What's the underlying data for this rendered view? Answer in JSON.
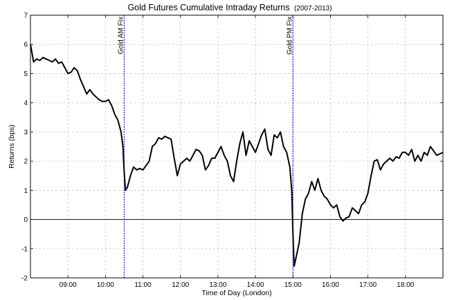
{
  "chart_data": {
    "type": "line",
    "title": "Gold Futures Cumulative Intraday Returns",
    "title_suffix": "(2007-2013)",
    "xlabel": "Time of Day (London)",
    "ylabel": "Returns (bps)",
    "xlim": [
      "08:00",
      "19:00"
    ],
    "ylim": [
      -2,
      7
    ],
    "x_ticks": [
      "09:00",
      "10:00",
      "11:00",
      "12:00",
      "13:00",
      "14:00",
      "15:00",
      "16:00",
      "17:00",
      "18:00"
    ],
    "y_ticks": [
      -2,
      -1,
      0,
      1,
      2,
      3,
      4,
      5,
      6,
      7
    ],
    "grid": true,
    "zero_line": true,
    "line_color": "#000000",
    "marker_color": "#1f1fbf",
    "vlines": [
      {
        "x": "10:30",
        "label": "Gold AM Fix"
      },
      {
        "x": "15:00",
        "label": "Gold PM Fix"
      }
    ],
    "series": [
      {
        "x": [
          "08:00",
          "08:05",
          "08:10",
          "08:15",
          "08:20",
          "08:25",
          "08:30",
          "08:35",
          "08:40",
          "08:45",
          "08:50",
          "08:55",
          "09:00",
          "09:05",
          "09:10",
          "09:15",
          "09:20",
          "09:25",
          "09:30",
          "09:35",
          "09:40",
          "09:45",
          "09:50",
          "09:55",
          "10:00",
          "10:05",
          "10:10",
          "10:15",
          "10:20",
          "10:25",
          "10:28",
          "10:30",
          "10:32",
          "10:35",
          "10:40",
          "10:45",
          "10:50",
          "10:55",
          "11:00",
          "11:05",
          "11:10",
          "11:15",
          "11:20",
          "11:25",
          "11:30",
          "11:35",
          "11:40",
          "11:45",
          "11:50",
          "11:55",
          "12:00",
          "12:05",
          "12:10",
          "12:15",
          "12:20",
          "12:25",
          "12:30",
          "12:35",
          "12:40",
          "12:45",
          "12:50",
          "12:55",
          "13:00",
          "13:05",
          "13:10",
          "13:15",
          "13:20",
          "13:25",
          "13:30",
          "13:35",
          "13:40",
          "13:45",
          "13:50",
          "13:55",
          "14:00",
          "14:05",
          "14:10",
          "14:15",
          "14:20",
          "14:25",
          "14:30",
          "14:35",
          "14:40",
          "14:45",
          "14:50",
          "14:55",
          "14:58",
          "15:00",
          "15:02",
          "15:05",
          "15:10",
          "15:15",
          "15:20",
          "15:25",
          "15:30",
          "15:35",
          "15:40",
          "15:45",
          "15:50",
          "15:55",
          "16:00",
          "16:05",
          "16:10",
          "16:15",
          "16:20",
          "16:25",
          "16:30",
          "16:35",
          "16:40",
          "16:45",
          "16:50",
          "16:55",
          "17:00",
          "17:05",
          "17:10",
          "17:15",
          "17:20",
          "17:25",
          "17:30",
          "17:35",
          "17:40",
          "17:45",
          "17:50",
          "17:55",
          "18:00",
          "18:05",
          "18:10",
          "18:15",
          "18:20",
          "18:25",
          "18:30",
          "18:35",
          "18:40",
          "18:45",
          "18:50",
          "18:55",
          "19:00"
        ],
        "values": [
          6.0,
          5.4,
          5.5,
          5.45,
          5.55,
          5.5,
          5.45,
          5.4,
          5.5,
          5.35,
          5.4,
          5.2,
          5.0,
          5.05,
          5.2,
          5.1,
          4.8,
          4.55,
          4.3,
          4.45,
          4.3,
          4.2,
          4.1,
          4.05,
          4.05,
          4.1,
          3.9,
          3.6,
          3.4,
          3.0,
          2.5,
          1.6,
          1.0,
          1.1,
          1.5,
          1.8,
          1.7,
          1.75,
          1.7,
          1.85,
          2.0,
          2.5,
          2.6,
          2.8,
          2.75,
          2.85,
          2.8,
          2.75,
          2.1,
          1.5,
          1.9,
          2.0,
          2.1,
          2.0,
          2.2,
          2.4,
          2.35,
          2.2,
          1.7,
          1.85,
          2.1,
          2.1,
          2.3,
          2.5,
          2.2,
          2.0,
          1.5,
          1.3,
          2.0,
          2.6,
          3.0,
          2.2,
          2.7,
          2.5,
          2.3,
          2.6,
          2.9,
          3.1,
          2.4,
          2.2,
          2.9,
          2.8,
          3.0,
          2.5,
          2.3,
          1.8,
          1.0,
          -0.5,
          -1.6,
          -1.3,
          -0.8,
          0.2,
          0.7,
          0.9,
          1.3,
          1.0,
          1.4,
          1.0,
          0.8,
          0.7,
          0.5,
          0.4,
          0.5,
          0.1,
          -0.05,
          0.05,
          0.1,
          0.4,
          0.3,
          0.2,
          0.5,
          0.6,
          0.9,
          1.5,
          2.0,
          2.05,
          1.7,
          1.9,
          2.0,
          2.1,
          2.0,
          2.15,
          2.1,
          2.3,
          2.3,
          2.2,
          2.4,
          2.0,
          2.2,
          2.0,
          2.3,
          2.2,
          2.5,
          2.35,
          2.2,
          2.25,
          2.3
        ]
      }
    ]
  }
}
